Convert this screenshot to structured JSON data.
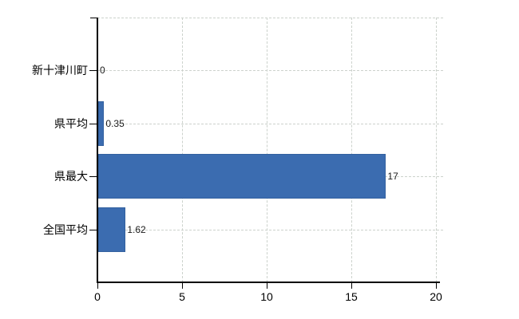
{
  "chart_data": {
    "type": "bar",
    "orientation": "horizontal",
    "title": "",
    "categories": [
      "新十津川町",
      "県平均",
      "県最大",
      "全国平均"
    ],
    "values": [
      0,
      0.35,
      17,
      1.62
    ],
    "value_labels": [
      "0",
      "0.35",
      "17",
      "1.62"
    ],
    "xlim": [
      0,
      20
    ],
    "x_ticks": [
      0,
      5,
      10,
      15,
      20
    ],
    "x_tick_labels": [
      "0",
      "5",
      "10",
      "15",
      "20"
    ],
    "grid": true,
    "legend_position": "none",
    "colors": {
      "bar": "#3b6cb0",
      "bar_border": "#33619f",
      "axis": "#000000",
      "gridline": "#ccd2cc",
      "text": "#000000",
      "background": "#ffffff"
    }
  }
}
